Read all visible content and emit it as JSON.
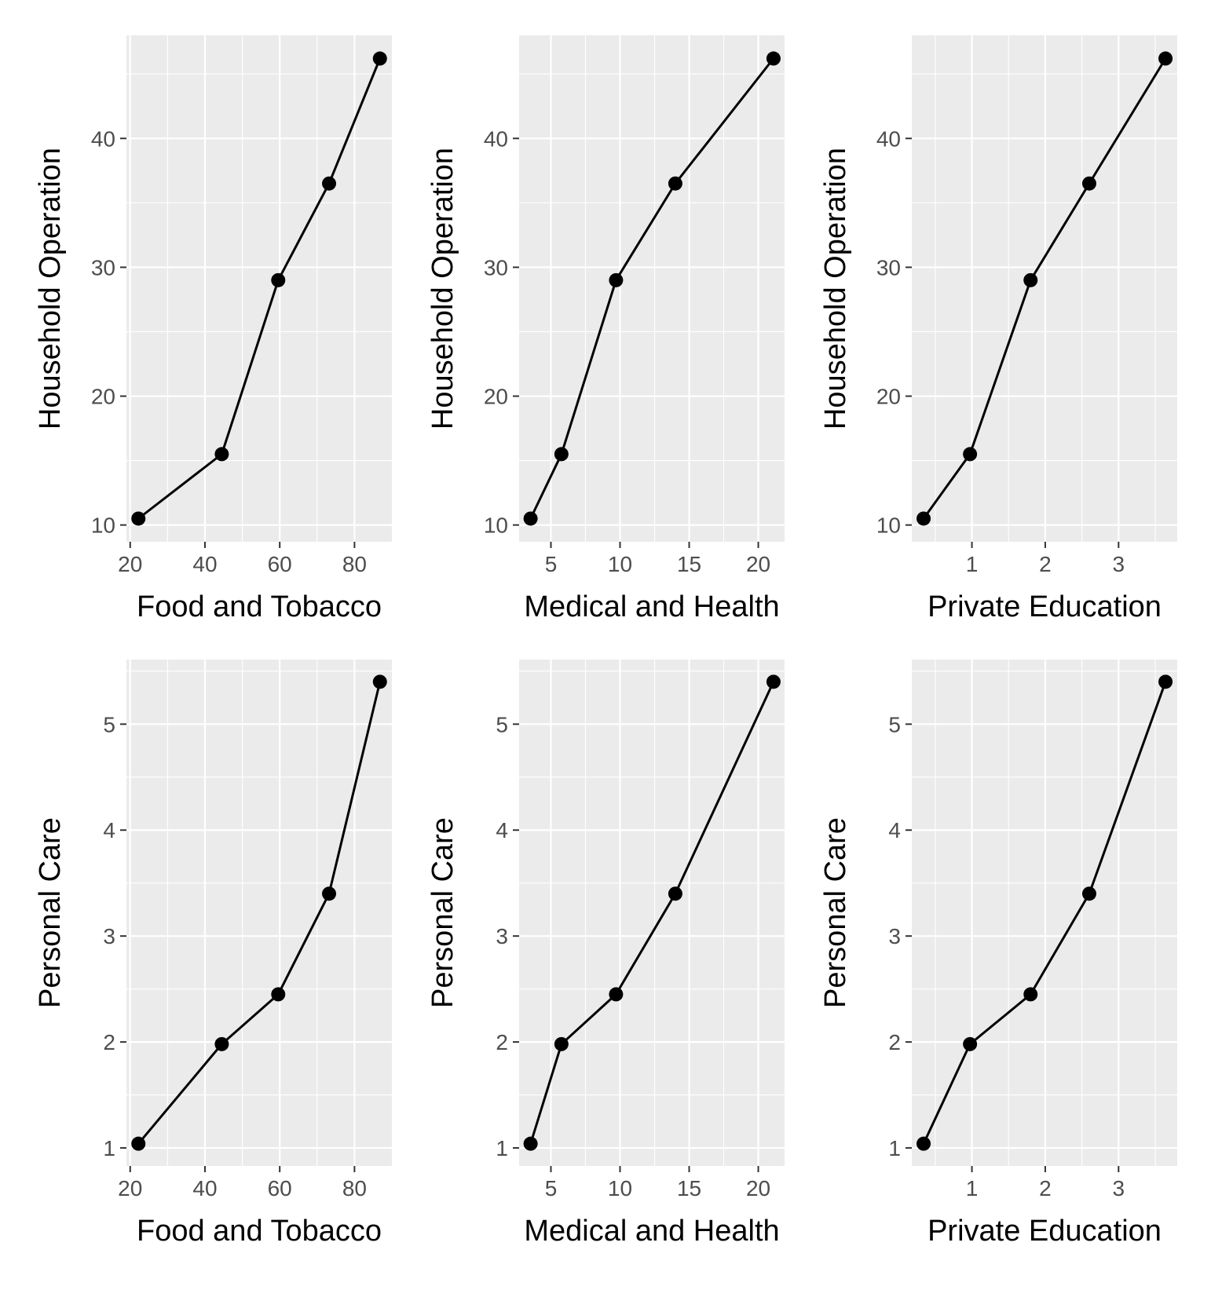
{
  "chart_data": [
    {
      "type": "line",
      "xlabel": "Food and Tobacco",
      "ylabel": "Household Operation",
      "x": [
        22.2,
        44.5,
        59.6,
        73.2,
        86.8
      ],
      "y": [
        10.5,
        15.5,
        29.0,
        36.5,
        46.2
      ],
      "xlim": [
        19.0,
        90.0
      ],
      "ylim": [
        8.7,
        48.0
      ],
      "xticks": [
        20,
        40,
        60,
        80
      ],
      "yticks": [
        10,
        20,
        30,
        40
      ],
      "grid": true
    },
    {
      "type": "line",
      "xlabel": "Medical and Health",
      "ylabel": "Household Operation",
      "x": [
        3.53,
        5.76,
        9.71,
        14.0,
        21.1
      ],
      "y": [
        10.5,
        15.5,
        29.0,
        36.5,
        46.2
      ],
      "xlim": [
        2.7,
        21.9
      ],
      "ylim": [
        8.7,
        48.0
      ],
      "xticks": [
        5,
        10,
        15,
        20
      ],
      "yticks": [
        10,
        20,
        30,
        40
      ],
      "grid": true
    },
    {
      "type": "line",
      "xlabel": "Private Education",
      "ylabel": "Household Operation",
      "x": [
        0.341,
        0.974,
        1.8,
        2.6,
        3.64
      ],
      "y": [
        10.5,
        15.5,
        29.0,
        36.5,
        46.2
      ],
      "xlim": [
        0.18,
        3.8
      ],
      "ylim": [
        8.7,
        48.0
      ],
      "xticks": [
        1,
        2,
        3
      ],
      "yticks": [
        10,
        20,
        30,
        40
      ],
      "grid": true
    },
    {
      "type": "line",
      "xlabel": "Food and Tobacco",
      "ylabel": "Personal Care",
      "x": [
        22.2,
        44.5,
        59.6,
        73.2,
        86.8
      ],
      "y": [
        1.04,
        1.98,
        2.45,
        3.4,
        5.4
      ],
      "xlim": [
        19.0,
        90.0
      ],
      "ylim": [
        0.83,
        5.61
      ],
      "xticks": [
        20,
        40,
        60,
        80
      ],
      "yticks": [
        1,
        2,
        3,
        4,
        5
      ],
      "grid": true
    },
    {
      "type": "line",
      "xlabel": "Medical and Health",
      "ylabel": "Personal Care",
      "x": [
        3.53,
        5.76,
        9.71,
        14.0,
        21.1
      ],
      "y": [
        1.04,
        1.98,
        2.45,
        3.4,
        5.4
      ],
      "xlim": [
        2.7,
        21.9
      ],
      "ylim": [
        0.83,
        5.61
      ],
      "xticks": [
        5,
        10,
        15,
        20
      ],
      "yticks": [
        1,
        2,
        3,
        4,
        5
      ],
      "grid": true
    },
    {
      "type": "line",
      "xlabel": "Private Education",
      "ylabel": "Personal Care",
      "x": [
        0.341,
        0.974,
        1.8,
        2.6,
        3.64
      ],
      "y": [
        1.04,
        1.98,
        2.45,
        3.4,
        5.4
      ],
      "xlim": [
        0.18,
        3.8
      ],
      "ylim": [
        0.83,
        5.61
      ],
      "xticks": [
        1,
        2,
        3
      ],
      "yticks": [
        1,
        2,
        3,
        4,
        5
      ],
      "grid": true
    }
  ]
}
